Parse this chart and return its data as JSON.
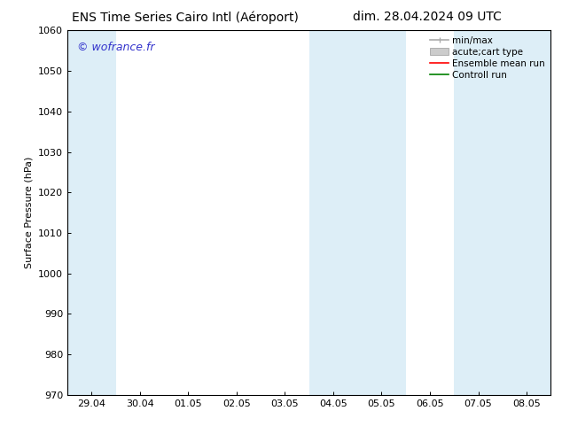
{
  "title_left": "ENS Time Series Cairo Intl (Aéroport)",
  "title_right": "dim. 28.04.2024 09 UTC",
  "ylabel": "Surface Pressure (hPa)",
  "ylim": [
    970,
    1060
  ],
  "yticks": [
    970,
    980,
    990,
    1000,
    1010,
    1020,
    1030,
    1040,
    1050,
    1060
  ],
  "xtick_labels": [
    "29.04",
    "30.04",
    "01.05",
    "02.05",
    "03.05",
    "04.05",
    "05.05",
    "06.05",
    "07.05",
    "08.05"
  ],
  "background_color": "#ffffff",
  "plot_bg_color": "#ffffff",
  "shaded_bands": [
    {
      "xstart": -0.5,
      "xend": 0.5,
      "color": "#ddeef7"
    },
    {
      "xstart": 4.5,
      "xend": 6.5,
      "color": "#ddeef7"
    },
    {
      "xstart": 7.5,
      "xend": 9.5,
      "color": "#ddeef7"
    }
  ],
  "watermark": "© wofrance.fr",
  "watermark_color": "#3333cc",
  "legend_entries": [
    {
      "label": "min/max",
      "color": "#aaaaaa",
      "lw": 1.2,
      "style": "minmax"
    },
    {
      "label": "acute;cart type",
      "color": "#cccccc",
      "lw": 5,
      "style": "band"
    },
    {
      "label": "Ensemble mean run",
      "color": "#ff0000",
      "lw": 1.2,
      "style": "line"
    },
    {
      "label": "Controll run",
      "color": "#008000",
      "lw": 1.2,
      "style": "line"
    }
  ],
  "title_fontsize": 10,
  "label_fontsize": 8,
  "tick_fontsize": 8,
  "watermark_fontsize": 9,
  "legend_fontsize": 7.5
}
